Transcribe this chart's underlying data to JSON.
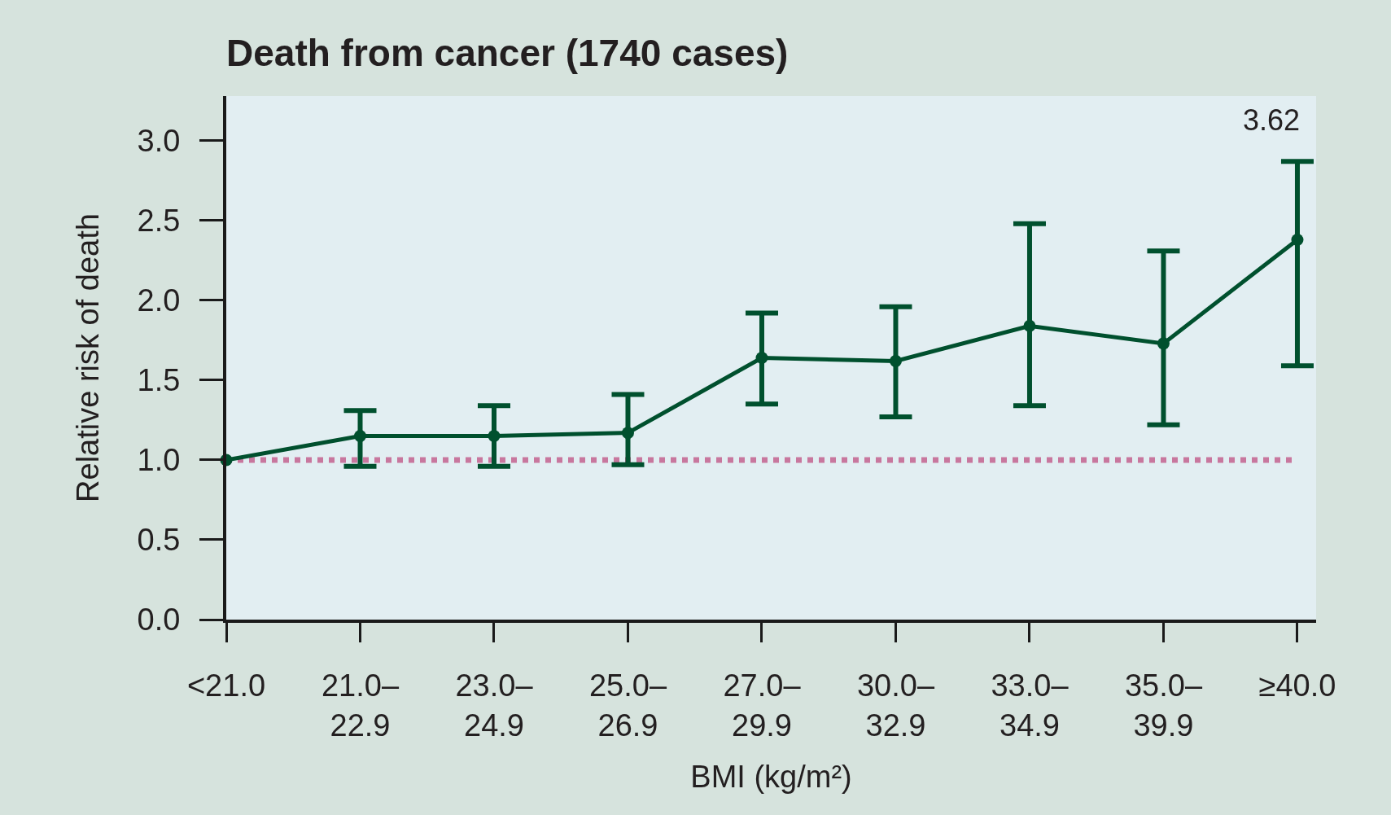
{
  "chart_data": {
    "type": "line",
    "title": "Death from cancer (1740 cases)",
    "xlabel": "BMI (kg/m²)",
    "ylabel": "Relative risk of death",
    "categories": [
      "<21.0",
      "21.0–\n22.9",
      "23.0–\n24.9",
      "25.0–\n26.9",
      "27.0–\n29.9",
      "30.0–\n32.9",
      "33.0–\n34.9",
      "35.0–\n39.9",
      "≥40.0"
    ],
    "series": [
      {
        "color": "#00502e",
        "values": [
          1.0,
          1.15,
          1.15,
          1.17,
          1.64,
          1.62,
          1.84,
          1.73,
          2.38
        ],
        "errors": [
          null,
          [
            0.96,
            1.31
          ],
          [
            0.96,
            1.34
          ],
          [
            0.97,
            1.41
          ],
          [
            1.35,
            1.92
          ],
          [
            1.27,
            1.96
          ],
          [
            1.34,
            2.48
          ],
          [
            1.22,
            2.31
          ],
          [
            1.59,
            2.87
          ]
        ]
      }
    ],
    "ylim": [
      0,
      3.28
    ],
    "yticks": [
      {
        "value": 0,
        "label": "0.0"
      },
      {
        "value": 0.5,
        "label": "0.5"
      },
      {
        "value": 1,
        "label": "1.0"
      },
      {
        "value": 1.5,
        "label": "1.5"
      },
      {
        "value": 2,
        "label": "2.0"
      },
      {
        "value": 2.5,
        "label": "2.5"
      },
      {
        "value": 3,
        "label": "3.0"
      }
    ],
    "ref_lines": [
      {
        "axis": "y",
        "value": 1.0,
        "color": "#c8779e",
        "line_style": "dotted"
      }
    ],
    "annotations": [
      {
        "text": "3.62",
        "x": "≥40.0",
        "y": 2.87
      }
    ],
    "marker": "circle",
    "line_style": "solid",
    "grid": false
  }
}
